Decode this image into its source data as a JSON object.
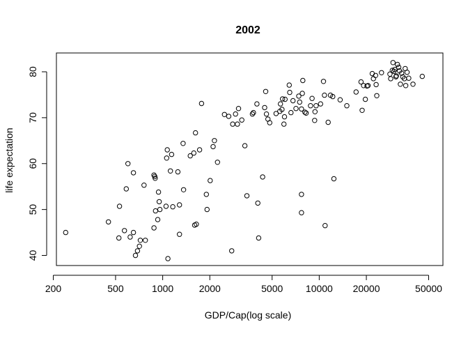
{
  "chart_data": {
    "type": "scatter",
    "title": "2002",
    "xlabel": "GDP/Cap(log scale)",
    "ylabel": "life expectation",
    "x_scale": "log",
    "xlim": [
      200,
      50000
    ],
    "ylim": [
      38,
      83
    ],
    "x_ticks": [
      200,
      500,
      1000,
      2000,
      5000,
      10000,
      20000,
      50000
    ],
    "x_tick_labels": [
      "200",
      "500",
      "1000",
      "2000",
      "5000",
      "10000",
      "20000",
      "50000"
    ],
    "y_ticks": [
      40,
      50,
      60,
      70,
      80
    ],
    "y_tick_labels": [
      "40",
      "50",
      "60",
      "70",
      "80"
    ],
    "grid": false,
    "legend": "none",
    "marker": "open-circle",
    "colors": {
      "points": "#000000",
      "axes": "#000000",
      "background": "#ffffff"
    },
    "series": [
      {
        "points": [
          [
            240,
            45.0
          ],
          [
            450,
            47.3
          ],
          [
            530,
            50.7
          ],
          [
            525,
            43.8
          ],
          [
            570,
            45.4
          ],
          [
            585,
            54.5
          ],
          [
            600,
            60.0
          ],
          [
            620,
            44.0
          ],
          [
            650,
            45.0
          ],
          [
            650,
            58.0
          ],
          [
            670,
            40.0
          ],
          [
            690,
            41.0
          ],
          [
            710,
            42.0
          ],
          [
            720,
            43.3
          ],
          [
            760,
            55.3
          ],
          [
            775,
            43.3
          ],
          [
            880,
            57.5
          ],
          [
            890,
            57.2
          ],
          [
            895,
            56.8
          ],
          [
            880,
            46.0
          ],
          [
            900,
            49.7
          ],
          [
            930,
            47.8
          ],
          [
            950,
            51.7
          ],
          [
            940,
            53.8
          ],
          [
            960,
            50.0
          ],
          [
            1050,
            50.7
          ],
          [
            1060,
            61.2
          ],
          [
            1070,
            63.0
          ],
          [
            1080,
            39.3
          ],
          [
            1120,
            58.4
          ],
          [
            1160,
            50.6
          ],
          [
            1140,
            62.0
          ],
          [
            1250,
            58.2
          ],
          [
            1280,
            44.6
          ],
          [
            1280,
            51.0
          ],
          [
            1350,
            64.4
          ],
          [
            1360,
            54.3
          ],
          [
            1500,
            61.7
          ],
          [
            1580,
            62.3
          ],
          [
            1600,
            46.6
          ],
          [
            1640,
            46.8
          ],
          [
            1620,
            66.7
          ],
          [
            1720,
            63.0
          ],
          [
            1770,
            73.1
          ],
          [
            1900,
            53.3
          ],
          [
            1920,
            50.0
          ],
          [
            2010,
            56.3
          ],
          [
            2100,
            63.7
          ],
          [
            2140,
            65.0
          ],
          [
            2240,
            60.3
          ],
          [
            2480,
            70.7
          ],
          [
            2640,
            70.3
          ],
          [
            2760,
            41.0
          ],
          [
            2800,
            68.6
          ],
          [
            2920,
            70.8
          ],
          [
            3000,
            68.6
          ],
          [
            3050,
            72.0
          ],
          [
            3200,
            69.5
          ],
          [
            3350,
            63.9
          ],
          [
            3450,
            53.0
          ],
          [
            3740,
            70.8
          ],
          [
            3800,
            71.1
          ],
          [
            4000,
            73.0
          ],
          [
            4050,
            51.4
          ],
          [
            4100,
            43.8
          ],
          [
            4350,
            57.1
          ],
          [
            4480,
            72.2
          ],
          [
            4550,
            75.7
          ],
          [
            4600,
            70.8
          ],
          [
            4700,
            69.7
          ],
          [
            4830,
            68.9
          ],
          [
            5300,
            70.9
          ],
          [
            5600,
            71.4
          ],
          [
            5650,
            73.0
          ],
          [
            5780,
            71.8
          ],
          [
            5830,
            74.1
          ],
          [
            5950,
            68.6
          ],
          [
            6000,
            70.2
          ],
          [
            6050,
            74.0
          ],
          [
            6430,
            77.1
          ],
          [
            6480,
            75.5
          ],
          [
            6600,
            71.1
          ],
          [
            6800,
            73.7
          ],
          [
            7100,
            72.0
          ],
          [
            7400,
            74.7
          ],
          [
            7500,
            73.4
          ],
          [
            7700,
            71.9
          ],
          [
            7800,
            75.3
          ],
          [
            7850,
            78.1
          ],
          [
            7700,
            53.3
          ],
          [
            7700,
            49.3
          ],
          [
            8100,
            71.2
          ],
          [
            8250,
            71.0
          ],
          [
            8800,
            72.6
          ],
          [
            9000,
            74.2
          ],
          [
            9350,
            69.4
          ],
          [
            9400,
            71.3
          ],
          [
            9550,
            72.6
          ],
          [
            10200,
            73.0
          ],
          [
            10650,
            77.9
          ],
          [
            10800,
            74.9
          ],
          [
            10900,
            46.5
          ],
          [
            11400,
            69.0
          ],
          [
            11800,
            74.9
          ],
          [
            12200,
            74.6
          ],
          [
            12400,
            56.7
          ],
          [
            13600,
            73.9
          ],
          [
            15000,
            72.6
          ],
          [
            17200,
            75.6
          ],
          [
            18500,
            77.8
          ],
          [
            18800,
            71.6
          ],
          [
            19200,
            77.0
          ],
          [
            19700,
            74.0
          ],
          [
            20200,
            76.9
          ],
          [
            20500,
            77.0
          ],
          [
            21800,
            79.6
          ],
          [
            22200,
            78.5
          ],
          [
            22900,
            79.2
          ],
          [
            23100,
            77.2
          ],
          [
            23300,
            74.8
          ],
          [
            25000,
            79.8
          ],
          [
            28300,
            79.5
          ],
          [
            28600,
            78.5
          ],
          [
            29300,
            80.3
          ],
          [
            29600,
            82.0
          ],
          [
            30000,
            80.1
          ],
          [
            30400,
            80.5
          ],
          [
            30900,
            78.9
          ],
          [
            31100,
            79.1
          ],
          [
            31600,
            81.6
          ],
          [
            32200,
            81.0
          ],
          [
            32600,
            80.2
          ],
          [
            33000,
            77.3
          ],
          [
            33600,
            79.7
          ],
          [
            34200,
            78.9
          ],
          [
            35000,
            78.5
          ],
          [
            35400,
            80.7
          ],
          [
            35700,
            77.0
          ],
          [
            36400,
            79.9
          ],
          [
            37300,
            78.6
          ],
          [
            39700,
            77.3
          ],
          [
            45500,
            79.0
          ]
        ]
      }
    ]
  }
}
